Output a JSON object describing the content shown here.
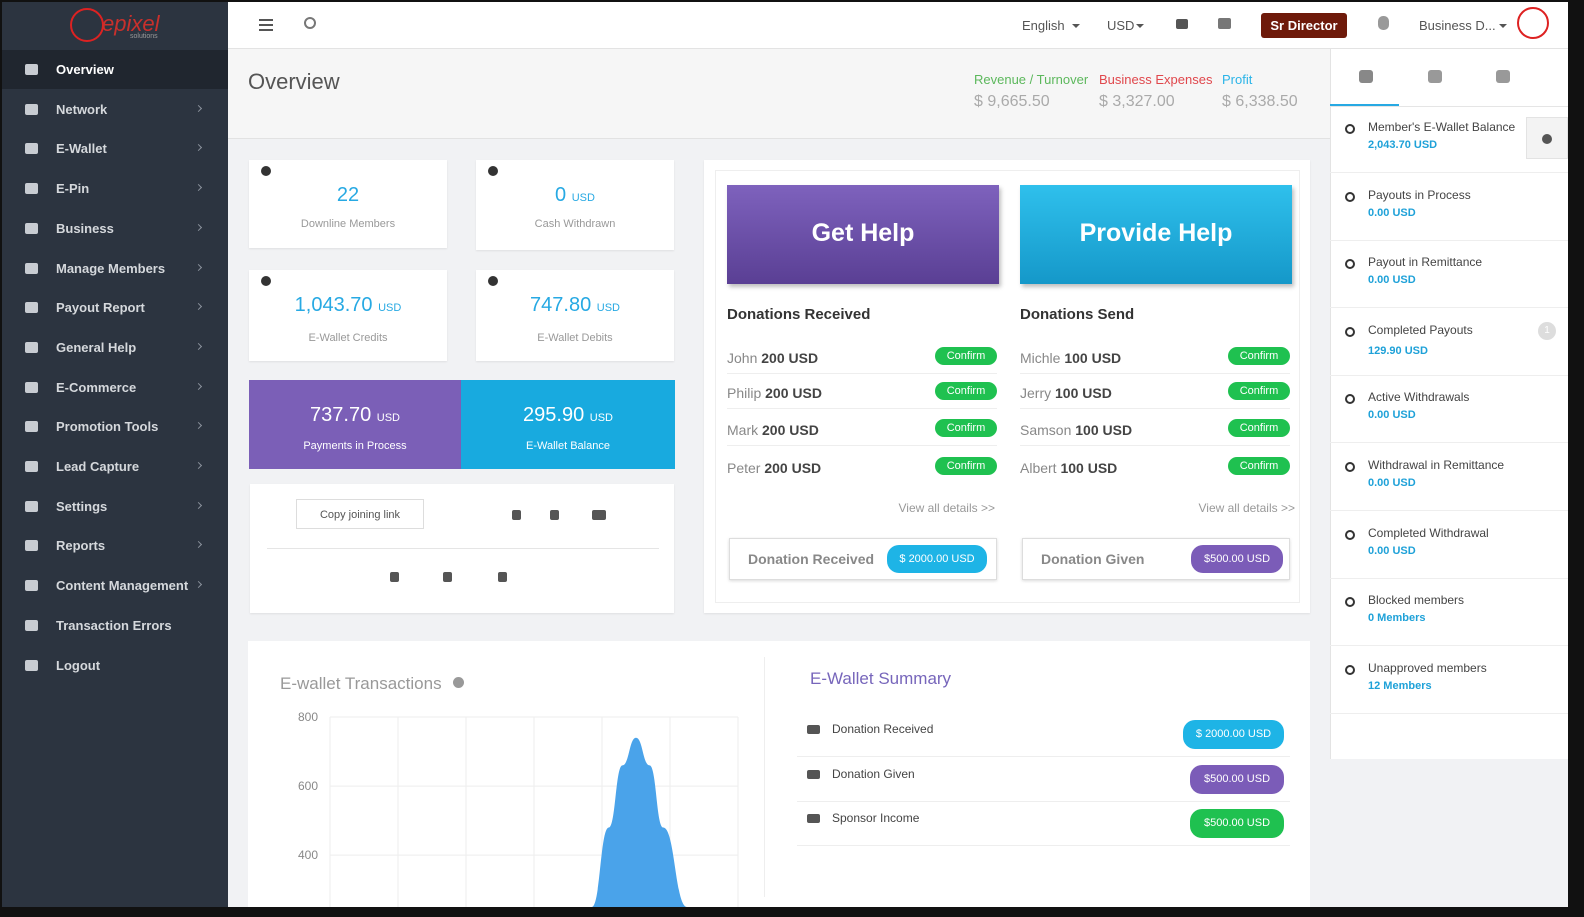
{
  "header": {
    "logo": "epixel",
    "logo_sub": "solutions",
    "language": "English",
    "currency": "USD",
    "rank": "Sr Director",
    "user": "Business D..."
  },
  "sidebar": {
    "items": [
      "Overview",
      "Network",
      "E-Wallet",
      "E-Pin",
      "Business",
      "Manage Members",
      "Payout Report",
      "General Help",
      "E-Commerce",
      "Promotion Tools",
      "Lead Capture",
      "Settings",
      "Reports",
      "Content Management",
      "Transaction Errors",
      "Logout"
    ]
  },
  "overview": {
    "title": "Overview",
    "stats": [
      {
        "label": "Revenue / Turnover",
        "value": "$ 9,665.50"
      },
      {
        "label": "Business Expenses",
        "value": "$ 3,327.00"
      },
      {
        "label": "Profit",
        "value": "$ 6,338.50"
      }
    ]
  },
  "tiles": [
    {
      "value": "22",
      "label": "Downline Members"
    },
    {
      "value": "0",
      "unit": "USD",
      "label": "Cash Withdrawn"
    },
    {
      "value": "1,043.70",
      "unit": "USD",
      "label": "E-Wallet Credits"
    },
    {
      "value": "747.80",
      "unit": "USD",
      "label": "E-Wallet Debits"
    }
  ],
  "big_tiles": [
    {
      "value": "737.70",
      "unit": "USD",
      "label": "Payments in Process"
    },
    {
      "value": "295.90",
      "unit": "USD",
      "label": "E-Wallet Balance"
    }
  ],
  "share": {
    "button": "Copy joining link"
  },
  "help": [
    {
      "button": "Get Help",
      "heading": "Donations Received",
      "rows": [
        {
          "name": "John",
          "amount": "200 USD",
          "action": "Confirm"
        },
        {
          "name": "Philip",
          "amount": "200 USD",
          "action": "Confirm"
        },
        {
          "name": "Mark",
          "amount": "200 USD",
          "action": "Confirm"
        },
        {
          "name": "Peter",
          "amount": "200 USD",
          "action": "Confirm"
        }
      ],
      "link": "View all details >>",
      "footer_label": "Donation Received",
      "footer_badge": "$ 2000.00 USD"
    },
    {
      "button": "Provide Help",
      "heading": "Donations Send",
      "rows": [
        {
          "name": "Michle",
          "amount": "100 USD",
          "action": "Confirm"
        },
        {
          "name": "Jerry",
          "amount": "100 USD",
          "action": "Confirm"
        },
        {
          "name": "Samson",
          "amount": "100 USD",
          "action": "Confirm"
        },
        {
          "name": "Albert",
          "amount": "100 USD",
          "action": "Confirm"
        }
      ],
      "link": "View all details >>",
      "footer_label": "Donation Given",
      "footer_badge": "$500.00 USD"
    }
  ],
  "chart_data": {
    "type": "area",
    "title": "E-wallet Transactions",
    "color": "#4aa3ea",
    "x": [
      3.85,
      4.1,
      4.3,
      4.5,
      4.7,
      4.9,
      5.25
    ],
    "values": [
      250,
      480,
      660,
      740,
      660,
      480,
      250
    ],
    "xlim": [
      0,
      6
    ],
    "ylim": [
      250,
      800
    ],
    "yticks": [
      400,
      600,
      800
    ],
    "grid": true
  },
  "summary": {
    "title": "E-Wallet Summary",
    "rows": [
      {
        "label": "Donation Received",
        "badge": "$ 2000.00 USD"
      },
      {
        "label": "Donation Given",
        "badge": "$500.00 USD"
      },
      {
        "label": "Sponsor Income",
        "badge": "$500.00 USD"
      }
    ]
  },
  "right_panel": {
    "items": [
      {
        "label": "Member's E-Wallet Balance",
        "value": "2,043.70 USD"
      },
      {
        "label": "Payouts in Process",
        "value": "0.00 USD"
      },
      {
        "label": "Payout in Remittance",
        "value": "0.00 USD"
      },
      {
        "label": "Completed Payouts",
        "value": "129.90 USD",
        "badge": "1"
      },
      {
        "label": "Active Withdrawals",
        "value": "0.00 USD"
      },
      {
        "label": "Withdrawal in Remittance",
        "value": "0.00 USD"
      },
      {
        "label": "Completed Withdrawal",
        "value": "0.00 USD"
      },
      {
        "label": "Blocked members",
        "value": "0 Members"
      },
      {
        "label": "Unapproved members",
        "value": "12 Members"
      }
    ]
  }
}
